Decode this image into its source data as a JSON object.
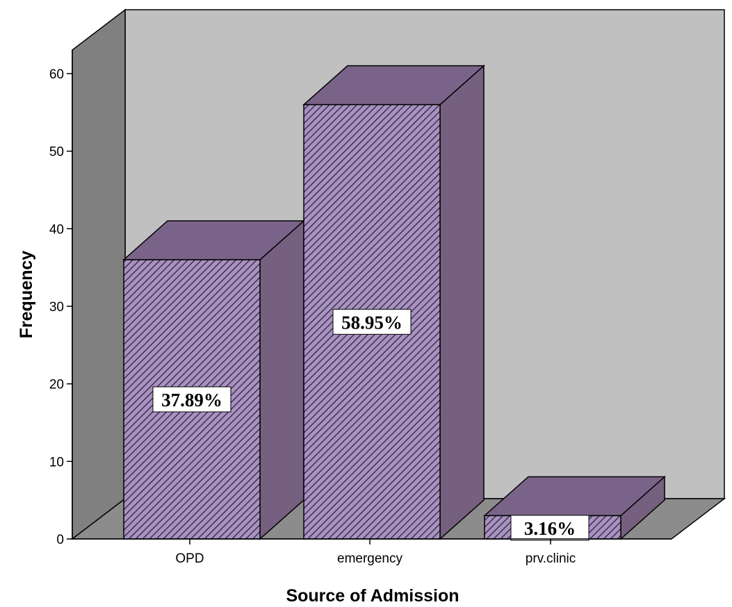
{
  "colors": {
    "back_wall": "#c0c0c0",
    "side_wall": "#808080",
    "floor": "#8c8c8c",
    "bar_front": "#a892c0",
    "bar_hatch": "#3e3050",
    "bar_top": "#7a6388",
    "bar_side": "#76607f"
  },
  "chart_data": {
    "type": "bar",
    "style": "3d",
    "categories": [
      "OPD",
      "emergency",
      "prv.clinic"
    ],
    "values": [
      36,
      56,
      3
    ],
    "data_labels": [
      "37.89%",
      "58.95%",
      "3.16%"
    ],
    "xlabel": "Source of Admission",
    "ylabel": "Frequency",
    "ylim": [
      0,
      60
    ],
    "yticks": [
      "0",
      "10",
      "20",
      "30",
      "40",
      "50",
      "60"
    ],
    "grid": false,
    "legend": "none"
  }
}
